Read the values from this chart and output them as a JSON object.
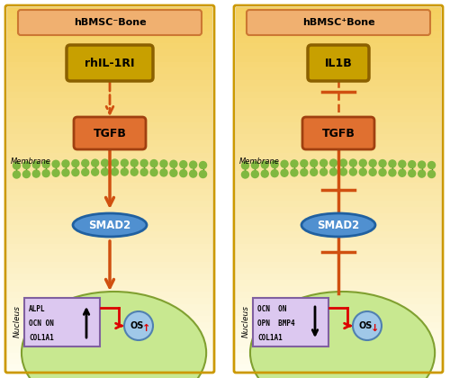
{
  "panel_titles": [
    "hBMSC⁻Bone",
    "hBMSC⁺Bone"
  ],
  "top_labels": [
    "rhIL-1RI",
    "IL1B"
  ],
  "gene_texts_left": [
    "ALPL",
    "OCN ON",
    "COL1A1"
  ],
  "gene_texts_right": [
    "OCN  ON",
    "OPN  BMP4",
    "COL1A1"
  ],
  "arrow_up_left": true,
  "arrow_up_right": false,
  "panel_bg_top": "#f5d060",
  "panel_bg_bot": "#fffef0",
  "panel_border": "#cc9900",
  "title_bg": "#f0b070",
  "title_border": "#cc7733",
  "top_box_color": "#c8a000",
  "top_box_border": "#8b6000",
  "tgfb_color": "#e07030",
  "tgfb_border": "#a04010",
  "smad_color": "#5090d0",
  "smad_border": "#2060a0",
  "membrane_color": "#80b840",
  "nucleus_color": "#c8e890",
  "nucleus_border": "#80a030",
  "gene_box_color": "#dcc8f0",
  "gene_box_border": "#8060a0",
  "arrow_color": "#d05010",
  "os_color": "#a0c8e8",
  "os_border": "#5080b0",
  "red_color": "#dd0000",
  "black": "#000000",
  "white": "#ffffff"
}
